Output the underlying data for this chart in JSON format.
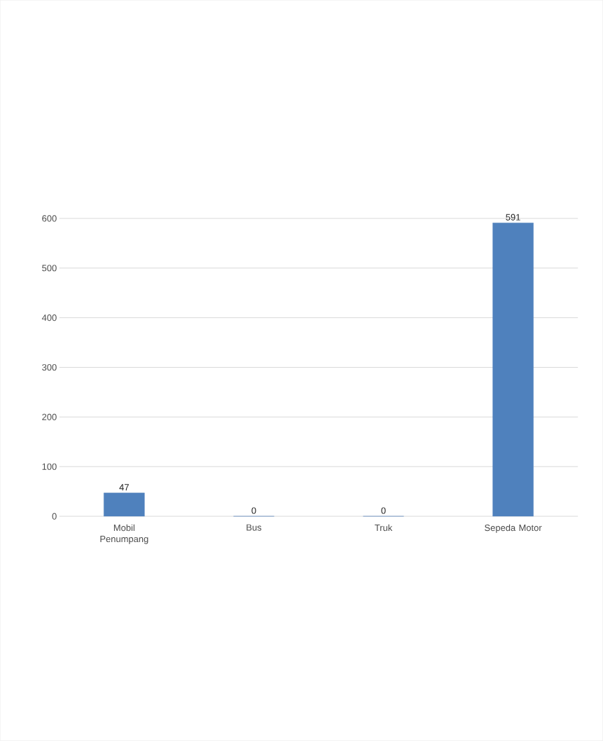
{
  "chart_data": {
    "type": "bar",
    "categories": [
      "Mobil Penumpang",
      "Bus",
      "Truk",
      "Sepeda Motor"
    ],
    "values": [
      47,
      0,
      0,
      591
    ],
    "color": "#4f81bd",
    "ylim": [
      0,
      600
    ],
    "yticks": [
      0,
      100,
      200,
      300,
      400,
      500,
      600
    ],
    "grid": "y",
    "data_labels": true
  }
}
